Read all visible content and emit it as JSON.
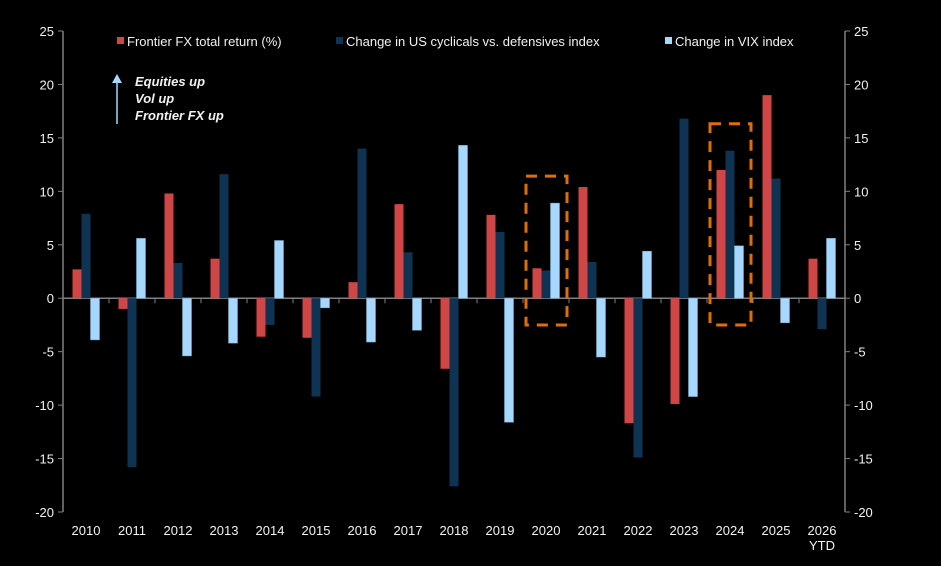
{
  "chart_data": {
    "type": "bar",
    "title": "",
    "xlabel": "",
    "ylabel": "",
    "ylim": [
      -20,
      25
    ],
    "yticks": [
      25,
      20,
      15,
      10,
      5,
      0,
      -5,
      -10,
      -15,
      -20
    ],
    "y2lim": [
      -20,
      25
    ],
    "grid": false,
    "legend_position": "top",
    "categories": [
      "2010",
      "2011",
      "2012",
      "2013",
      "2014",
      "2015",
      "2016",
      "2017",
      "2018",
      "2019",
      "2020",
      "2021",
      "2022",
      "2023",
      "2024",
      "2025",
      "2026 YTD"
    ],
    "series": [
      {
        "name": "Frontier FX total return (%)",
        "color": "#d04545",
        "values": [
          2.7,
          -1.0,
          9.8,
          3.7,
          -3.6,
          -3.7,
          1.5,
          8.8,
          -6.6,
          7.8,
          2.8,
          10.4,
          -11.7,
          -9.9,
          12.0,
          19.0,
          3.7
        ]
      },
      {
        "name": "Change in US cyclicals vs. defensives index",
        "color": "#0f3352",
        "values": [
          7.9,
          -15.8,
          3.3,
          11.6,
          -2.5,
          -9.2,
          14.0,
          4.3,
          -17.6,
          6.2,
          2.6,
          3.4,
          -14.9,
          16.8,
          13.8,
          11.2,
          -2.9
        ]
      },
      {
        "name": "Change in VIX index",
        "color": "#a6d8ff",
        "values": [
          -3.9,
          5.6,
          -5.4,
          -4.2,
          5.4,
          -0.9,
          -4.1,
          -3.0,
          14.3,
          -11.6,
          8.9,
          -5.5,
          4.4,
          -9.2,
          4.9,
          -2.3,
          5.6
        ]
      }
    ],
    "annotations": {
      "arrow_text": [
        "Equities up",
        "Vol up",
        "Frontier FX up"
      ],
      "arrow_color": "#a6d8ff",
      "highlight_boxes": [
        "2020",
        "2024"
      ],
      "highlight_color": "#e36c0a"
    },
    "axis_color": "#808080",
    "background": "#000000"
  }
}
